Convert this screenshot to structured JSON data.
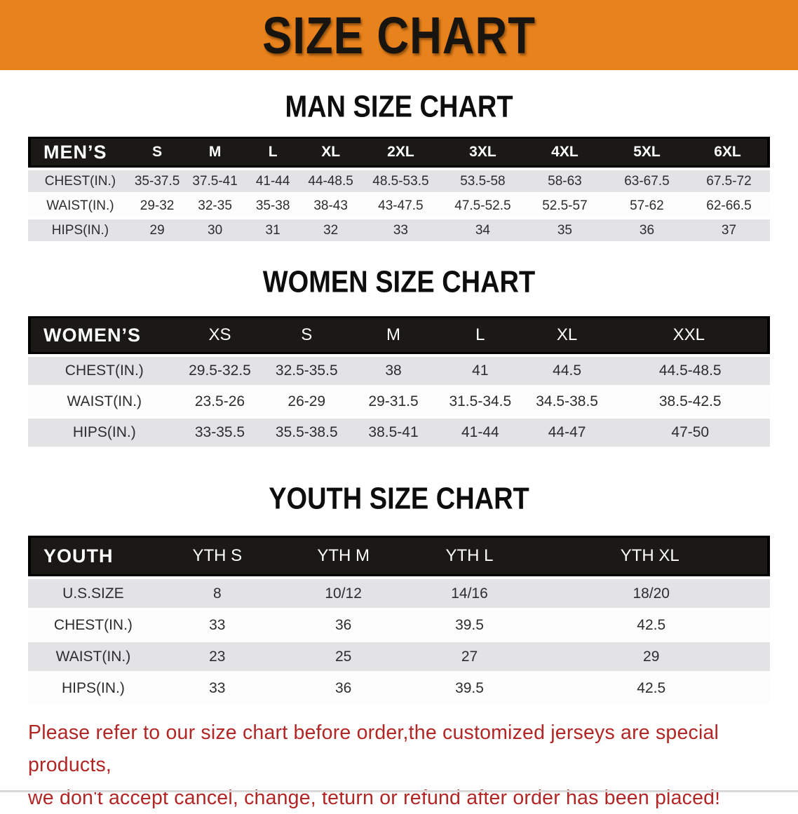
{
  "banner": {
    "title": "SIZE CHART"
  },
  "colors": {
    "banner_orange": "#E8821C",
    "table_header_black": "#1B1916",
    "stripe_gray": "#E3E3E5",
    "note_red": "#B22626"
  },
  "sections": [
    {
      "id": "men",
      "heading": "MAN SIZE CHART",
      "columns": [
        "MEN’S",
        "S",
        "M",
        "L",
        "XL",
        "2XL",
        "3XL",
        "4XL",
        "5XL",
        "6XL"
      ],
      "rows": [
        [
          "CHEST(IN.)",
          "35-37.5",
          "37.5-41",
          "41-44",
          "44-48.5",
          "48.5-53.5",
          "53.5-58",
          "58-63",
          "63-67.5",
          "67.5-72"
        ],
        [
          "WAIST(IN.)",
          "29-32",
          "32-35",
          "35-38",
          "38-43",
          "43-47.5",
          "47.5-52.5",
          "52.5-57",
          "57-62",
          "62-66.5"
        ],
        [
          "HIPS(IN.)",
          "29",
          "30",
          "31",
          "32",
          "33",
          "34",
          "35",
          "36",
          "37"
        ]
      ]
    },
    {
      "id": "women",
      "heading": "WOMEN SIZE CHART",
      "columns": [
        "WOMEN’S",
        "XS",
        "S",
        "M",
        "L",
        "XL",
        "XXL"
      ],
      "rows": [
        [
          "CHEST(IN.)",
          "29.5-32.5",
          "32.5-35.5",
          "38",
          "41",
          "44.5",
          "44.5-48.5"
        ],
        [
          "WAIST(IN.)",
          "23.5-26",
          "26-29",
          "29-31.5",
          "31.5-34.5",
          "34.5-38.5",
          "38.5-42.5"
        ],
        [
          "HIPS(IN.)",
          "33-35.5",
          "35.5-38.5",
          "38.5-41",
          "41-44",
          "44-47",
          "47-50"
        ]
      ]
    },
    {
      "id": "youth",
      "heading": "YOUTH SIZE CHART",
      "columns": [
        "YOUTH",
        "YTH S",
        "YTH M",
        "YTH L",
        "YTH XL"
      ],
      "rows": [
        [
          "U.S.SIZE",
          "8",
          "10/12",
          "14/16",
          "18/20"
        ],
        [
          "CHEST(IN.)",
          "33",
          "36",
          "39.5",
          "42.5"
        ],
        [
          "WAIST(IN.)",
          "23",
          "25",
          "27",
          "29"
        ],
        [
          "HIPS(IN.)",
          "33",
          "36",
          "39.5",
          "42.5"
        ]
      ]
    }
  ],
  "note": {
    "line1": "Please refer to our size chart before order,the customized jerseys are special products,",
    "line2": "we don't accept cancel, change, teturn or refund after order has been placed!"
  }
}
